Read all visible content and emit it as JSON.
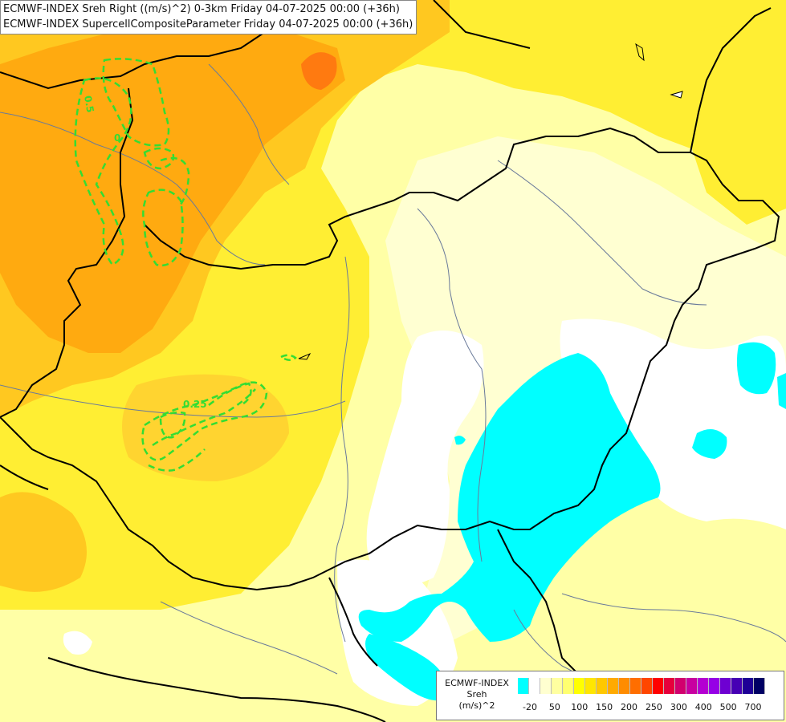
{
  "header": {
    "line1": "ECMWF-INDEX Sreh Right ((m/s)^2) 0-3km Friday 04-07-2025 00:00 (+36h)",
    "line2": "ECMWF-INDEX SupercellCompositeParameter Friday 04-07-2025 00:00 (+36h)"
  },
  "map_labels": {
    "contour_a": "0.25",
    "contour_b": "0.25",
    "contour_c": "0",
    "contour_d": "0.5"
  },
  "legend": {
    "line1": "ECMWF-INDEX",
    "line2": "Sreh",
    "line3": "(m/s)^2",
    "colors": [
      "#00ffff",
      "#ffffff",
      "#ffffd0",
      "#ffffa0",
      "#ffff70",
      "#ffff00",
      "#ffe600",
      "#ffc800",
      "#ffaa00",
      "#ff8c00",
      "#ff6e00",
      "#ff4600",
      "#ff0000",
      "#e6003c",
      "#d2006e",
      "#c800a0",
      "#b400d2",
      "#9600e6",
      "#6e00d2",
      "#4600b4",
      "#1e0096",
      "#000064"
    ],
    "ticks": [
      "-20",
      "50",
      "100",
      "150",
      "200",
      "250",
      "300",
      "400",
      "500",
      "700"
    ]
  },
  "colors": {
    "contour": "#33dd33",
    "border": "#000000",
    "river": "#6a7a9a"
  }
}
